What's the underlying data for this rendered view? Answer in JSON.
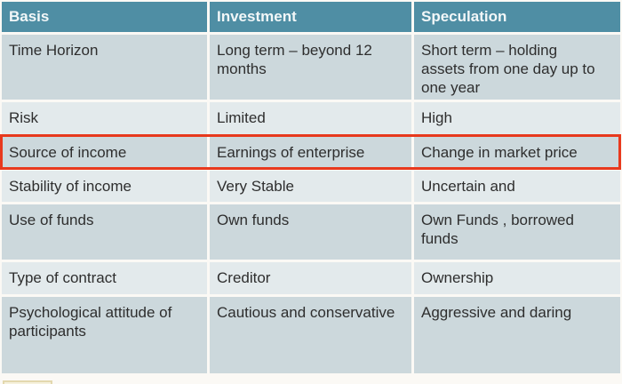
{
  "table": {
    "header": {
      "basis": "Basis",
      "investment": "Investment",
      "speculation": "Speculation"
    },
    "rows": [
      {
        "basis": "Time Horizon",
        "investment": "Long term – beyond 12 months",
        "speculation": "Short term – holding assets from one day up to one year"
      },
      {
        "basis": "Risk",
        "investment": "Limited",
        "speculation": "High"
      },
      {
        "basis": "Source of income",
        "investment": "Earnings of enterprise",
        "speculation": "Change in market price",
        "highlighted": true
      },
      {
        "basis": "Stability of income",
        "investment": "Very Stable",
        "speculation": "Uncertain and"
      },
      {
        "basis": "Use of funds",
        "investment": "Own funds",
        "speculation": "Own Funds , borrowed funds"
      },
      {
        "basis": "Type of contract",
        "investment": "Creditor",
        "speculation": "Ownership"
      },
      {
        "basis": "Psychological attitude of participants",
        "investment": "Cautious and conservative",
        "speculation": "Aggressive and daring"
      }
    ],
    "highlighted_row_index": 2
  },
  "colors": {
    "header_bg": "#4f8ea4",
    "header_text": "#f2f7f8",
    "row_dark": "#ccd8dc",
    "row_light": "#e3eaec",
    "body_text": "#2e2e2e",
    "highlight_border": "#e8391d",
    "fragment_border": "#e3d8ae",
    "page_bg": "#fbf9f5"
  }
}
